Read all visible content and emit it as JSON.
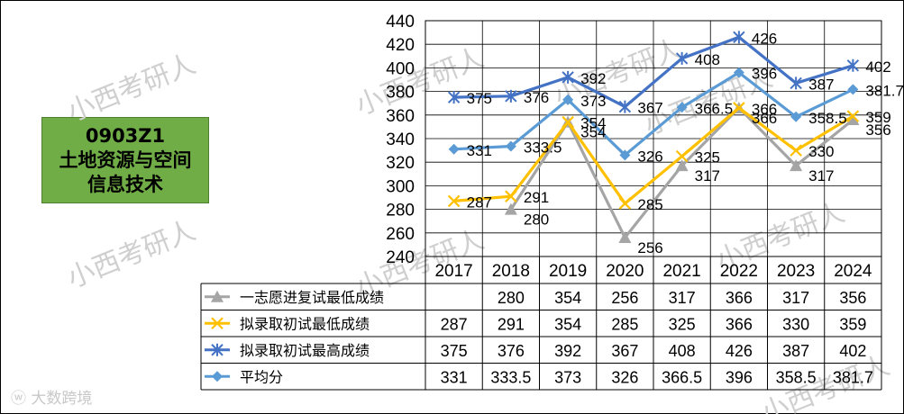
{
  "title": {
    "line1": "0903Z1",
    "line2": "土地资源与空间",
    "line3": "信息技术"
  },
  "watermark_text": "小西考研人",
  "source_watermark": "大数跨境",
  "chart_data": {
    "type": "line",
    "x": [
      "2017",
      "2018",
      "2019",
      "2020",
      "2021",
      "2022",
      "2023",
      "2024"
    ],
    "ylim": [
      240,
      440
    ],
    "ytick_step": 20,
    "grid": true,
    "legend": "table-left",
    "series": [
      {
        "name": "一志愿进复试最低成绩",
        "color": "#a5a5a5",
        "marker": "triangle",
        "values": [
          null,
          280,
          354,
          256,
          317,
          366,
          317,
          356
        ],
        "labels": [
          "",
          "280",
          "354",
          "256",
          "317",
          "366",
          "317",
          "356"
        ]
      },
      {
        "name": "拟录取初试最低成绩",
        "color": "#ffc000",
        "marker": "x",
        "values": [
          287,
          291,
          354,
          285,
          325,
          366,
          330,
          359
        ],
        "labels": [
          "287",
          "291",
          "354",
          "285",
          "325",
          "366",
          "330",
          "359"
        ]
      },
      {
        "name": "拟录取初试最高成绩",
        "color": "#4472c4",
        "marker": "star",
        "values": [
          375,
          376,
          392,
          367,
          408,
          426,
          387,
          402
        ],
        "labels": [
          "375",
          "376",
          "392",
          "367",
          "408",
          "426",
          "387",
          "402"
        ]
      },
      {
        "name": "平均分",
        "color": "#5b9bd5",
        "marker": "diamond",
        "values": [
          331,
          333.5,
          373,
          326,
          366.5,
          396,
          358.5,
          381.7
        ],
        "labels": [
          "331",
          "333.5",
          "373",
          "326",
          "366.5",
          "396",
          "358.5",
          "381.7"
        ]
      }
    ]
  }
}
